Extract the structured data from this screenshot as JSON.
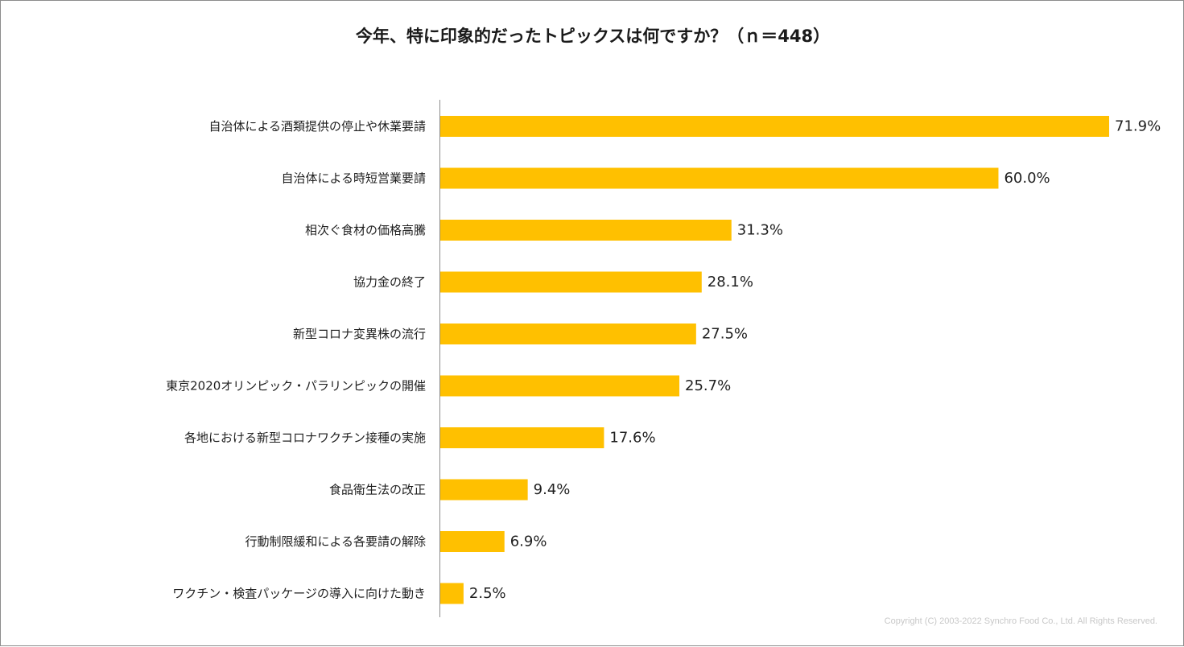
{
  "chart_data": {
    "type": "bar",
    "orientation": "horizontal",
    "title": "今年、特に印象的だったトピックスは何ですか？（ｎ＝448）",
    "categories": [
      "自治体による酒類提供の停止や休業要請",
      "自治体による時短営業要請",
      "相次ぐ食材の価格高騰",
      "協力金の終了",
      "新型コロナ変異株の流行",
      "東京2020オリンピック・パラリンピックの開催",
      "各地における新型コロナワクチン接種の実施",
      "食品衛生法の改正",
      "行動制限緩和による各要請の解除",
      "ワクチン・検査パッケージの導入に向けた動き"
    ],
    "values": [
      71.9,
      60.0,
      31.3,
      28.1,
      27.5,
      25.7,
      17.6,
      9.4,
      6.9,
      2.5
    ],
    "value_labels": [
      "71.9%",
      "60.0%",
      "31.3%",
      "28.1%",
      "27.5%",
      "25.7%",
      "17.6%",
      "9.4%",
      "6.9%",
      "2.5%"
    ],
    "unit": "%",
    "xlim": [
      0,
      75
    ],
    "xlabel": "",
    "ylabel": "",
    "grid": false,
    "legend": "none",
    "bar_color": "#FFC000"
  },
  "footer": {
    "copyright": "Copyright (C) 2003-2022   Synchro Food Co., Ltd. All Rights Reserved."
  }
}
